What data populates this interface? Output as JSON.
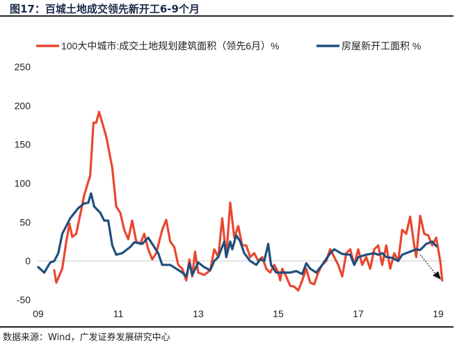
{
  "figure_title": "图17：百城土地成交领先新开工6-9个月",
  "source": "数据来源：Wind，广发证券发展研究中心",
  "chart_data": {
    "type": "line",
    "title": "图17：百城土地成交领先新开工6-9个月",
    "xlabel": "",
    "ylabel": "",
    "ylim": [
      -50,
      250
    ],
    "xlim": [
      2009,
      2019.2
    ],
    "yticks": [
      -50,
      0,
      50,
      100,
      150,
      200,
      250
    ],
    "xticks": [
      {
        "v": 2009,
        "label": "09"
      },
      {
        "v": 2011,
        "label": "11"
      },
      {
        "v": 2013,
        "label": "13"
      },
      {
        "v": 2015,
        "label": "15"
      },
      {
        "v": 2017,
        "label": "17"
      },
      {
        "v": 2019,
        "label": "19"
      }
    ],
    "grid": "zero-line only",
    "legend_position": "top",
    "annotation": "dotted arrow pointing down at end of series",
    "series": [
      {
        "name": "100大中城市:成交土地规划建筑面积（领先6月）%",
        "color": "#e8472f",
        "x": [
          2009.4,
          2009.45,
          2009.6,
          2009.7,
          2009.78,
          2009.85,
          2009.95,
          2010.05,
          2010.15,
          2010.3,
          2010.38,
          2010.45,
          2010.52,
          2010.7,
          2010.85,
          2010.95,
          2011.05,
          2011.15,
          2011.25,
          2011.35,
          2011.45,
          2011.55,
          2011.65,
          2011.75,
          2011.85,
          2011.95,
          2012.1,
          2012.2,
          2012.3,
          2012.4,
          2012.5,
          2012.6,
          2012.7,
          2012.78,
          2012.85,
          2012.92,
          2013.0,
          2013.15,
          2013.3,
          2013.4,
          2013.5,
          2013.6,
          2013.7,
          2013.8,
          2013.9,
          2014.0,
          2014.1,
          2014.2,
          2014.3,
          2014.4,
          2014.5,
          2014.6,
          2014.7,
          2014.8,
          2014.9,
          2015.0,
          2015.05,
          2015.1,
          2015.2,
          2015.3,
          2015.4,
          2015.5,
          2015.6,
          2015.7,
          2015.8,
          2015.9,
          2016.0,
          2016.1,
          2016.2,
          2016.3,
          2016.4,
          2016.5,
          2016.6,
          2016.7,
          2016.8,
          2016.9,
          2017.0,
          2017.1,
          2017.2,
          2017.3,
          2017.4,
          2017.5,
          2017.6,
          2017.7,
          2017.8,
          2017.9,
          2018.0,
          2018.1,
          2018.2,
          2018.3,
          2018.4,
          2018.45,
          2018.55,
          2018.65,
          2018.75,
          2018.85,
          2018.95,
          2019.05,
          2019.1
        ],
        "values": [
          -12,
          -28,
          -10,
          25,
          48,
          31,
          35,
          60,
          85,
          110,
          178,
          178,
          192,
          160,
          120,
          70,
          62,
          40,
          28,
          52,
          25,
          22,
          35,
          15,
          2,
          10,
          40,
          53,
          25,
          18,
          -5,
          -10,
          -25,
          2,
          -20,
          12,
          -15,
          -18,
          -12,
          15,
          5,
          55,
          5,
          75,
          30,
          45,
          20,
          20,
          5,
          10,
          0,
          5,
          -10,
          -15,
          -5,
          -15,
          -25,
          -10,
          -20,
          -32,
          -33,
          -38,
          -25,
          -10,
          -28,
          -30,
          -15,
          -5,
          0,
          15,
          5,
          -5,
          -20,
          10,
          15,
          -5,
          15,
          -5,
          5,
          -10,
          15,
          20,
          -5,
          20,
          -10,
          10,
          0,
          40,
          35,
          57,
          20,
          5,
          58,
          35,
          33,
          20,
          30,
          0,
          -25
        ]
      },
      {
        "name": "房屋新开工面积 %",
        "color": "#1f4e7e",
        "x": [
          2009.0,
          2009.15,
          2009.3,
          2009.4,
          2009.5,
          2009.6,
          2009.8,
          2010.0,
          2010.15,
          2010.25,
          2010.32,
          2010.4,
          2010.55,
          2010.65,
          2010.75,
          2010.85,
          2010.95,
          2011.1,
          2011.3,
          2011.4,
          2011.6,
          2011.75,
          2011.9,
          2012.0,
          2012.1,
          2012.3,
          2012.45,
          2012.6,
          2012.7,
          2012.78,
          2012.85,
          2013.0,
          2013.15,
          2013.3,
          2013.4,
          2013.5,
          2013.65,
          2013.7,
          2013.8,
          2013.85,
          2013.95,
          2014.05,
          2014.15,
          2014.3,
          2014.45,
          2014.55,
          2014.65,
          2014.75,
          2014.82,
          2014.95,
          2015.1,
          2015.3,
          2015.45,
          2015.6,
          2015.7,
          2015.8,
          2015.95,
          2016.1,
          2016.3,
          2016.4,
          2016.6,
          2016.8,
          2016.9,
          2017.0,
          2017.2,
          2017.4,
          2017.5,
          2017.6,
          2017.7,
          2017.85,
          2018.0,
          2018.1,
          2018.3,
          2018.45,
          2018.55,
          2018.7,
          2018.85,
          2018.95
        ],
        "values": [
          -8,
          -15,
          -2,
          0,
          10,
          35,
          55,
          68,
          74,
          75,
          87,
          70,
          62,
          52,
          52,
          20,
          8,
          10,
          18,
          24,
          22,
          30,
          18,
          10,
          -5,
          -5,
          -10,
          -15,
          -20,
          -3,
          -18,
          -2,
          -8,
          -12,
          0,
          5,
          25,
          5,
          25,
          15,
          33,
          25,
          10,
          0,
          -5,
          2,
          0,
          22,
          -5,
          -15,
          -15,
          -15,
          -13,
          -17,
          -3,
          -10,
          -15,
          -5,
          10,
          15,
          9,
          8,
          -5,
          5,
          8,
          10,
          8,
          10,
          5,
          4,
          0,
          8,
          12,
          15,
          14,
          22,
          25,
          19
        ]
      }
    ]
  }
}
